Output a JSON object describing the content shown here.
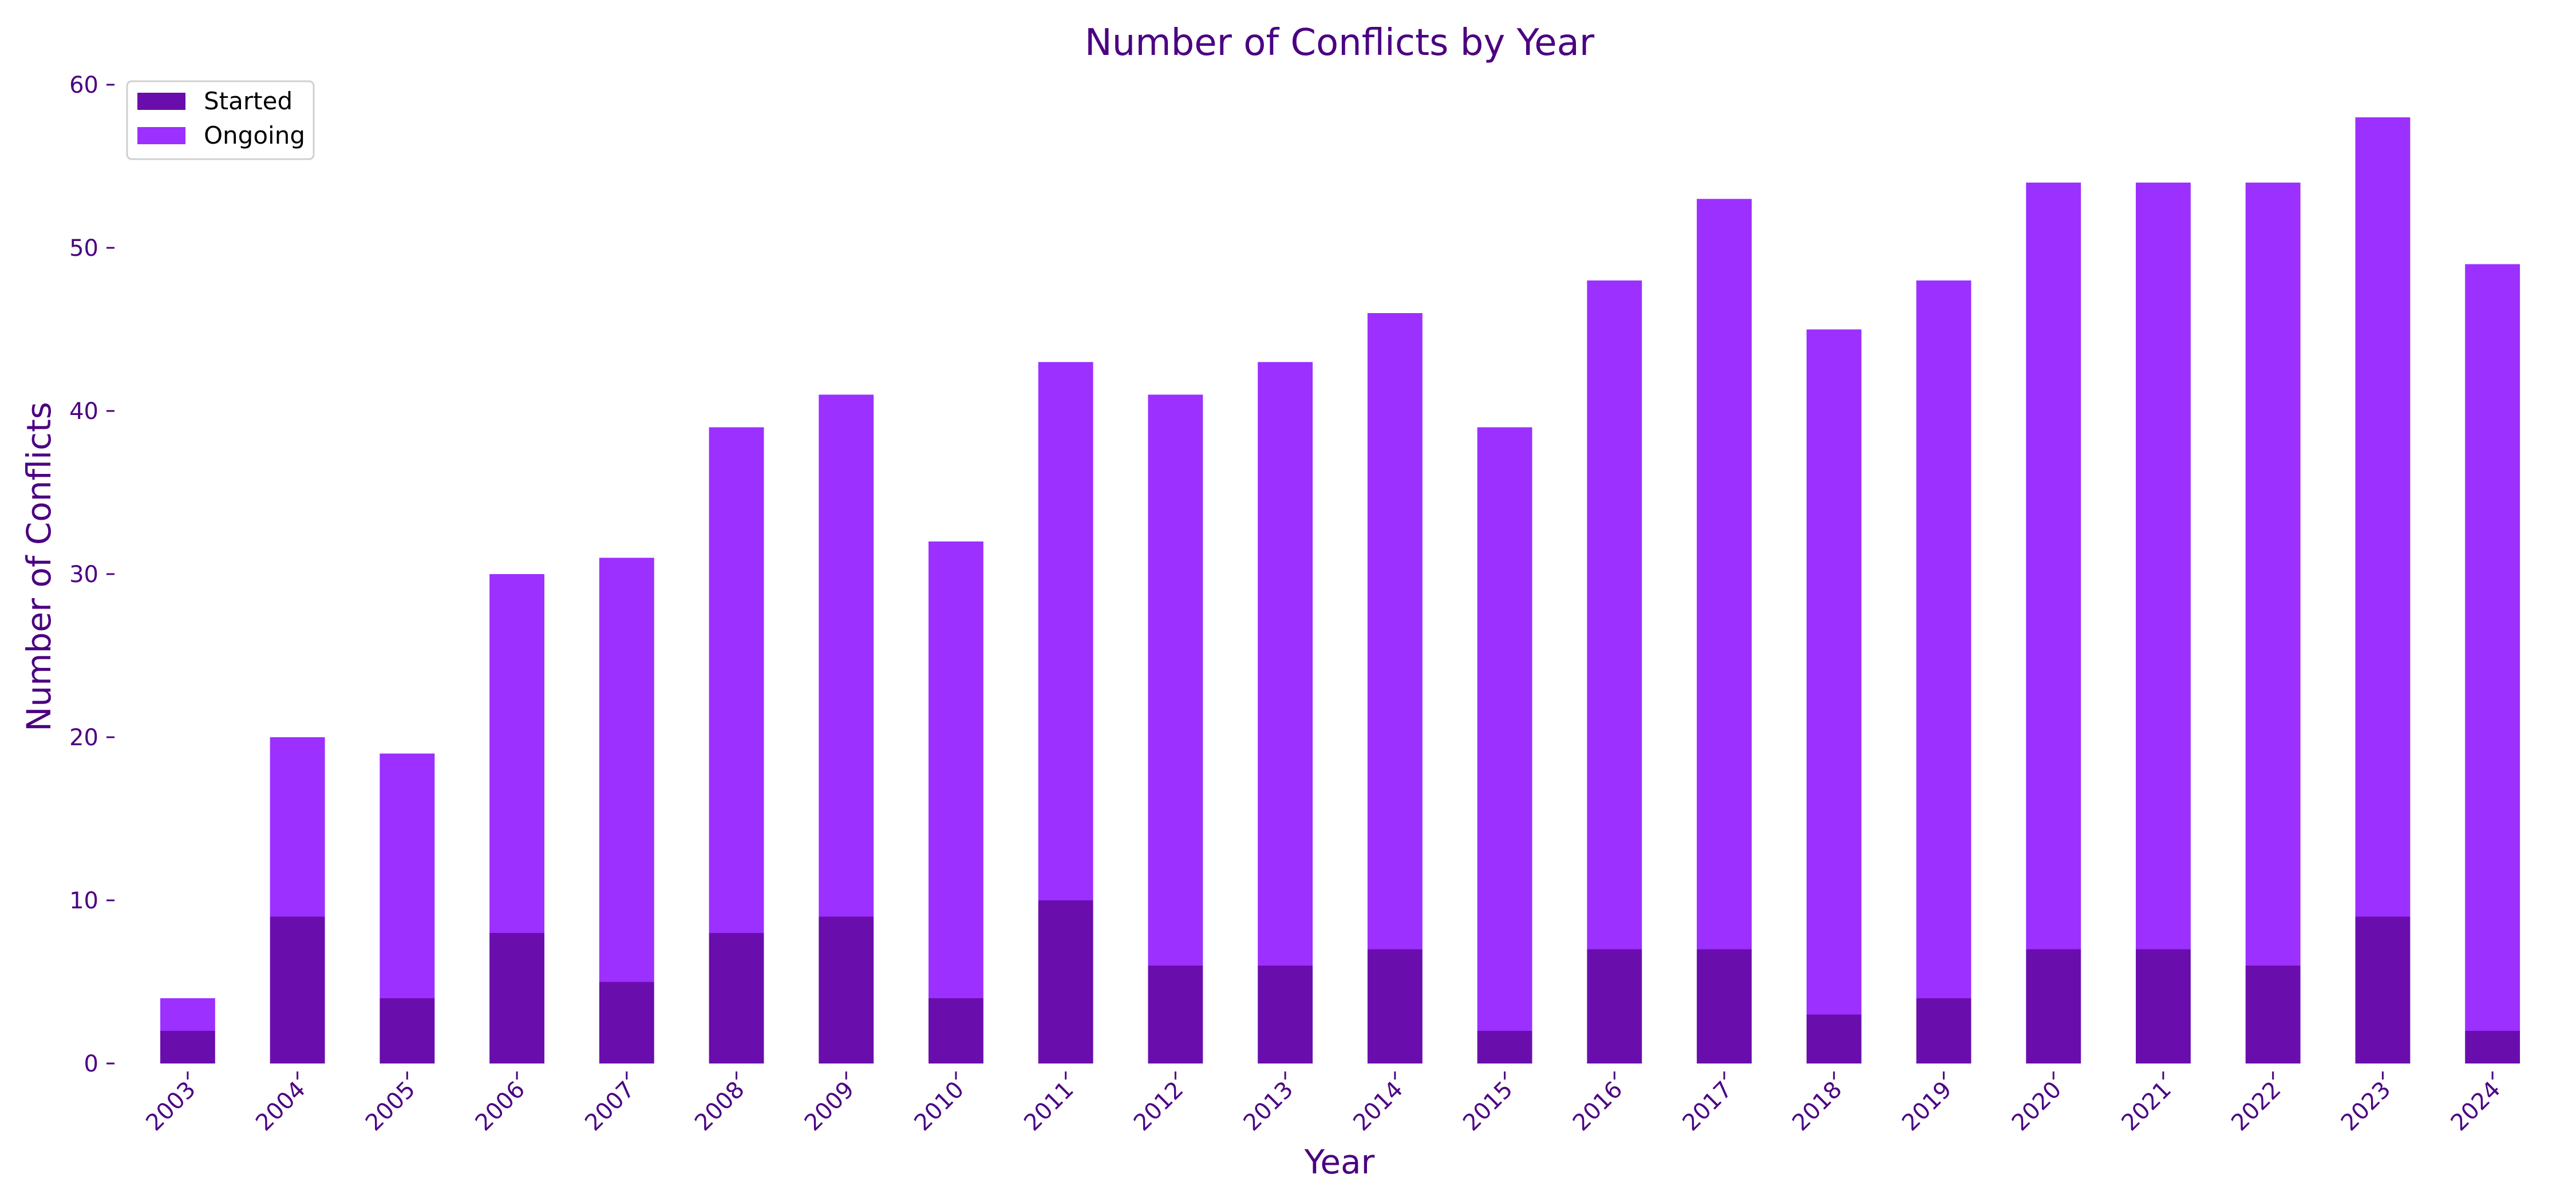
{
  "colors": {
    "started": "#6a0dad",
    "ongoing": "#9b30ff",
    "text": "#4b0082",
    "background": "#ffffff"
  },
  "chart_data": {
    "type": "bar",
    "stacked": true,
    "title": "Number of Conflicts by Year",
    "xlabel": "Year",
    "ylabel": "Number of Conflicts",
    "ylim": [
      0,
      60
    ],
    "yticks": [
      0,
      10,
      20,
      30,
      40,
      50,
      60
    ],
    "categories": [
      "2003",
      "2004",
      "2005",
      "2006",
      "2007",
      "2008",
      "2009",
      "2010",
      "2011",
      "2012",
      "2013",
      "2014",
      "2015",
      "2016",
      "2017",
      "2018",
      "2019",
      "2020",
      "2021",
      "2022",
      "2023",
      "2024"
    ],
    "series": [
      {
        "name": "Started",
        "values": [
          2,
          9,
          4,
          8,
          5,
          8,
          9,
          4,
          10,
          6,
          6,
          7,
          2,
          7,
          7,
          3,
          4,
          7,
          7,
          6,
          9,
          2
        ]
      },
      {
        "name": "Ongoing",
        "values": [
          2,
          11,
          15,
          22,
          26,
          31,
          32,
          28,
          33,
          35,
          37,
          39,
          37,
          41,
          46,
          42,
          44,
          47,
          47,
          48,
          49,
          47
        ]
      }
    ],
    "legend": "top-left",
    "grid": false
  }
}
